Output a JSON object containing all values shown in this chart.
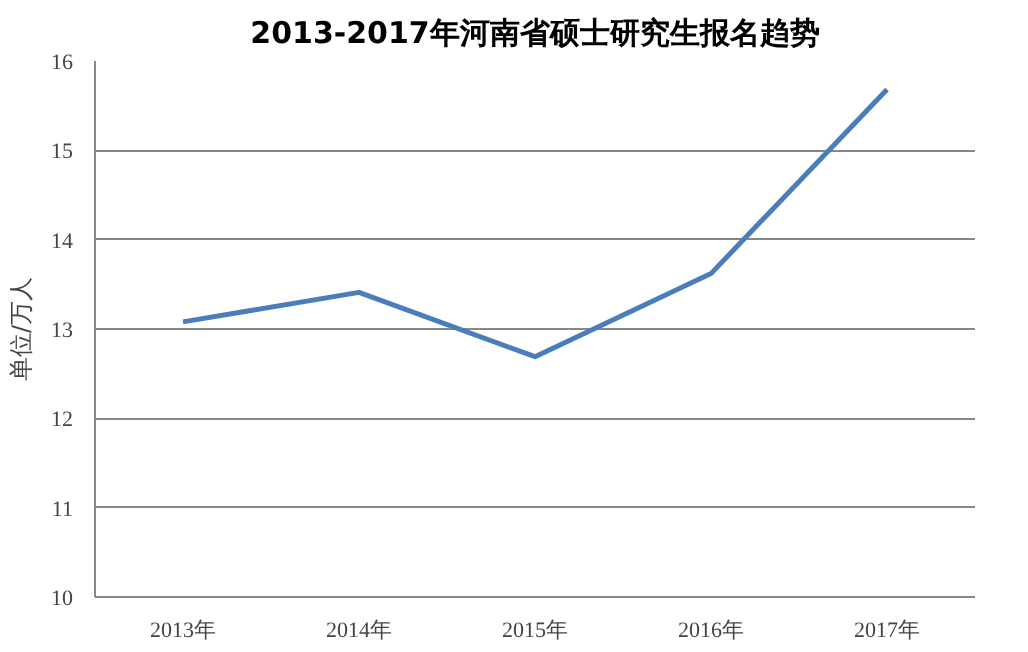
{
  "chart_data": {
    "type": "line",
    "title": "2013-2017年河南省硕士研究生报名趋势",
    "ylabel": "单位/万人",
    "categories": [
      "2013年",
      "2014年",
      "2015年",
      "2016年",
      "2017年"
    ],
    "series": [
      {
        "color": "#4a7ebb",
        "values": [
          13.08,
          13.41,
          12.69,
          13.62,
          15.68
        ]
      }
    ],
    "ylim": [
      10,
      16
    ],
    "yticks": [
      10,
      11,
      12,
      13,
      14,
      15,
      16
    ],
    "grid": "y",
    "marker": "none",
    "line_style": "solid"
  }
}
